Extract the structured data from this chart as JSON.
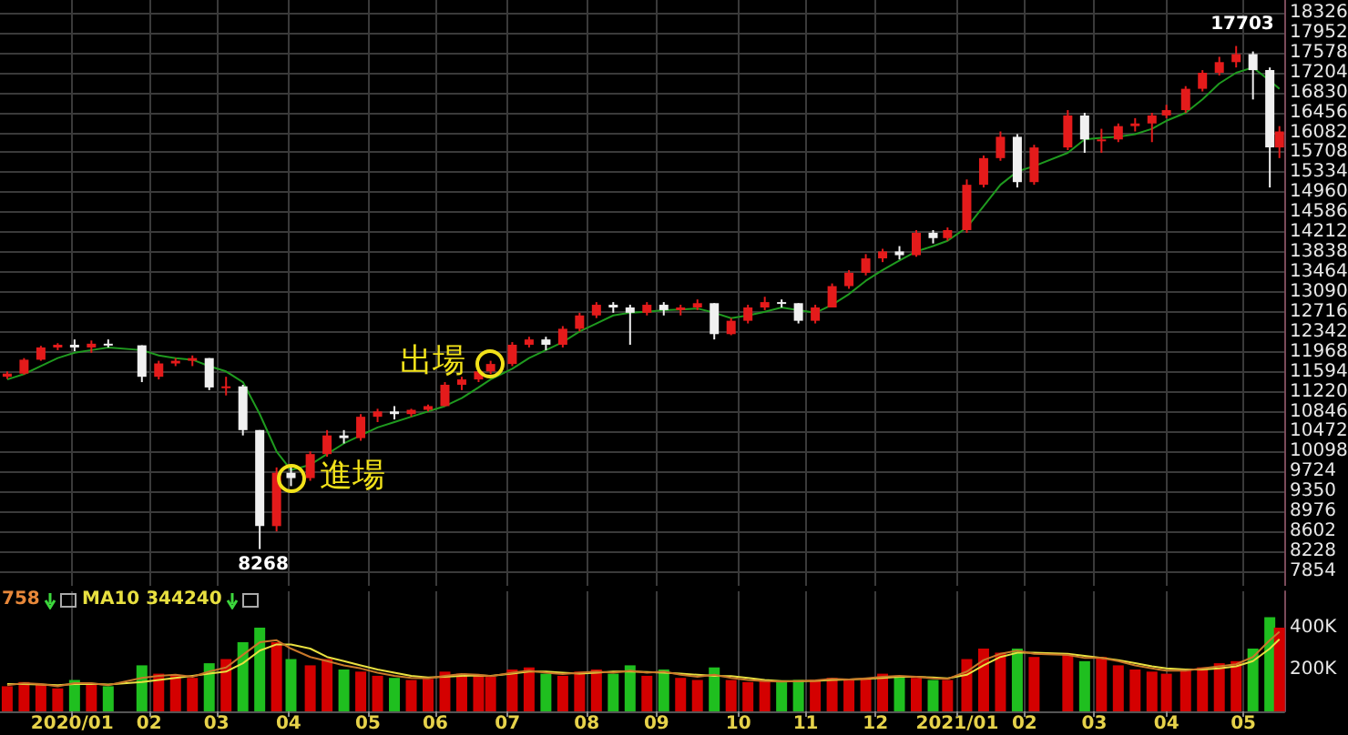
{
  "chart_data": [
    {
      "type": "candlestick",
      "x": [
        "2019-12-06",
        "2019-12-13",
        "2019-12-20",
        "2019-12-27",
        "2020-01-03",
        "2020-01-10",
        "2020-01-17",
        "2020-01-31",
        "2020-02-07",
        "2020-02-14",
        "2020-02-21",
        "2020-02-28",
        "2020-03-06",
        "2020-03-13",
        "2020-03-20",
        "2020-03-27",
        "2020-04-02",
        "2020-04-10",
        "2020-04-17",
        "2020-04-24",
        "2020-05-01",
        "2020-05-08",
        "2020-05-15",
        "2020-05-22",
        "2020-05-29",
        "2020-06-05",
        "2020-06-12",
        "2020-06-19",
        "2020-06-24",
        "2020-07-03",
        "2020-07-10",
        "2020-07-17",
        "2020-07-24",
        "2020-07-31",
        "2020-08-07",
        "2020-08-14",
        "2020-08-21",
        "2020-08-28",
        "2020-09-04",
        "2020-09-11",
        "2020-09-18",
        "2020-09-25",
        "2020-10-02",
        "2020-10-09",
        "2020-10-16",
        "2020-10-23",
        "2020-10-30",
        "2020-11-06",
        "2020-11-13",
        "2020-11-20",
        "2020-11-27",
        "2020-12-04",
        "2020-12-11",
        "2020-12-18",
        "2020-12-25",
        "2020-12-31",
        "2021-01-08",
        "2021-01-15",
        "2021-01-22",
        "2021-01-29",
        "2021-02-05",
        "2021-02-19",
        "2021-02-26",
        "2021-03-05",
        "2021-03-12",
        "2021-03-19",
        "2021-03-26",
        "2021-04-01",
        "2021-04-09",
        "2021-04-16",
        "2021-04-23",
        "2021-04-30",
        "2021-05-07",
        "2021-05-14",
        "2021-05-18"
      ],
      "ohlc": [
        [
          11500,
          11600,
          11460,
          11560
        ],
        [
          11560,
          11850,
          11540,
          11820
        ],
        [
          11820,
          12080,
          11800,
          12050
        ],
        [
          12050,
          12130,
          12000,
          12100
        ],
        [
          12100,
          12200,
          11980,
          12050
        ],
        [
          12050,
          12180,
          11950,
          12120
        ],
        [
          12120,
          12200,
          12050,
          12090
        ],
        [
          12090,
          12090,
          11400,
          11500
        ],
        [
          11500,
          11800,
          11450,
          11750
        ],
        [
          11750,
          11850,
          11700,
          11800
        ],
        [
          11800,
          11900,
          11700,
          11850
        ],
        [
          11850,
          11850,
          11250,
          11300
        ],
        [
          11300,
          11500,
          11150,
          11320
        ],
        [
          11320,
          11350,
          10400,
          10500
        ],
        [
          10500,
          10500,
          8268,
          8700
        ],
        [
          8700,
          9800,
          8600,
          9700
        ],
        [
          9700,
          9800,
          9450,
          9600
        ],
        [
          9600,
          10100,
          9550,
          10050
        ],
        [
          10050,
          10500,
          10000,
          10400
        ],
        [
          10400,
          10500,
          10250,
          10350
        ],
        [
          10350,
          10800,
          10300,
          10750
        ],
        [
          10750,
          10900,
          10650,
          10850
        ],
        [
          10850,
          10950,
          10700,
          10800
        ],
        [
          10800,
          10900,
          10750,
          10880
        ],
        [
          10880,
          10980,
          10850,
          10950
        ],
        [
          10950,
          11400,
          10950,
          11350
        ],
        [
          11350,
          11500,
          11250,
          11450
        ],
        [
          11450,
          11650,
          11400,
          11600
        ],
        [
          11600,
          11800,
          11550,
          11740
        ],
        [
          11740,
          12150,
          11700,
          12100
        ],
        [
          12100,
          12250,
          12050,
          12200
        ],
        [
          12200,
          12250,
          12000,
          12100
        ],
        [
          12100,
          12450,
          12050,
          12400
        ],
        [
          12400,
          12700,
          12350,
          12650
        ],
        [
          12650,
          12900,
          12600,
          12850
        ],
        [
          12850,
          12900,
          12700,
          12800
        ],
        [
          12800,
          12850,
          12100,
          12700
        ],
        [
          12700,
          12900,
          12650,
          12850
        ],
        [
          12850,
          12900,
          12650,
          12750
        ],
        [
          12750,
          12850,
          12650,
          12800
        ],
        [
          12800,
          12950,
          12750,
          12880
        ],
        [
          12880,
          12880,
          12200,
          12300
        ],
        [
          12300,
          12600,
          12280,
          12550
        ],
        [
          12550,
          12850,
          12500,
          12800
        ],
        [
          12800,
          13000,
          12750,
          12900
        ],
        [
          12900,
          12950,
          12800,
          12880
        ],
        [
          12880,
          12880,
          12500,
          12550
        ],
        [
          12550,
          12850,
          12500,
          12800
        ],
        [
          12800,
          13250,
          12800,
          13200
        ],
        [
          13200,
          13500,
          13150,
          13450
        ],
        [
          13450,
          13800,
          13400,
          13720
        ],
        [
          13720,
          13900,
          13650,
          13850
        ],
        [
          13850,
          13950,
          13700,
          13780
        ],
        [
          13780,
          14250,
          13750,
          14200
        ],
        [
          14200,
          14250,
          14000,
          14100
        ],
        [
          14100,
          14300,
          14050,
          14250
        ],
        [
          14250,
          15200,
          14200,
          15100
        ],
        [
          15100,
          15650,
          15050,
          15600
        ],
        [
          15600,
          16100,
          15550,
          16000
        ],
        [
          16000,
          16050,
          15050,
          15150
        ],
        [
          15150,
          15850,
          15100,
          15800
        ],
        [
          15800,
          16500,
          15750,
          16400
        ],
        [
          16400,
          16450,
          15700,
          15950
        ],
        [
          15950,
          16150,
          15700,
          15950
        ],
        [
          15950,
          16250,
          15900,
          16200
        ],
        [
          16200,
          16350,
          16100,
          16250
        ],
        [
          16250,
          16450,
          15900,
          16400
        ],
        [
          16400,
          16600,
          16350,
          16500
        ],
        [
          16500,
          16950,
          16450,
          16900
        ],
        [
          16900,
          17250,
          16850,
          17200
        ],
        [
          17200,
          17500,
          17150,
          17400
        ],
        [
          17400,
          17703,
          17300,
          17550
        ],
        [
          17550,
          17600,
          16700,
          17250
        ],
        [
          17250,
          17300,
          15050,
          15800
        ],
        [
          15800,
          16200,
          15600,
          16100
        ]
      ],
      "colors": [
        "#e41b1b",
        "#e41b1b",
        "#e41b1b",
        "#e41b1b",
        "#f0f0f0",
        "#e41b1b",
        "#f0f0f0",
        "#f0f0f0",
        "#e41b1b",
        "#e41b1b",
        "#e41b1b",
        "#f0f0f0",
        "#e41b1b",
        "#f0f0f0",
        "#f0f0f0",
        "#e41b1b",
        "#f0f0f0",
        "#e41b1b",
        "#e41b1b",
        "#f0f0f0",
        "#e41b1b",
        "#e41b1b",
        "#f0f0f0",
        "#e41b1b",
        "#e41b1b",
        "#e41b1b",
        "#e41b1b",
        "#e41b1b",
        "#e41b1b",
        "#e41b1b",
        "#e41b1b",
        "#f0f0f0",
        "#e41b1b",
        "#e41b1b",
        "#e41b1b",
        "#f0f0f0",
        "#f0f0f0",
        "#e41b1b",
        "#f0f0f0",
        "#e41b1b",
        "#e41b1b",
        "#f0f0f0",
        "#e41b1b",
        "#e41b1b",
        "#e41b1b",
        "#f0f0f0",
        "#f0f0f0",
        "#e41b1b",
        "#e41b1b",
        "#e41b1b",
        "#e41b1b",
        "#e41b1b",
        "#f0f0f0",
        "#e41b1b",
        "#f0f0f0",
        "#e41b1b",
        "#e41b1b",
        "#e41b1b",
        "#e41b1b",
        "#f0f0f0",
        "#e41b1b",
        "#e41b1b",
        "#f0f0f0",
        "#e41b1b",
        "#e41b1b",
        "#e41b1b",
        "#e41b1b",
        "#e41b1b",
        "#e41b1b",
        "#e41b1b",
        "#e41b1b",
        "#e41b1b",
        "#f0f0f0",
        "#f0f0f0",
        "#e41b1b"
      ],
      "series": [
        {
          "type": "line",
          "color": "#1f9a1f",
          "values": [
            11450,
            11550,
            11700,
            11850,
            11950,
            12000,
            12050,
            12000,
            11900,
            11850,
            11820,
            11700,
            11600,
            11400,
            10800,
            10100,
            9750,
            9850,
            10050,
            10250,
            10400,
            10550,
            10650,
            10750,
            10850,
            10950,
            11100,
            11300,
            11450,
            11650,
            11850,
            12000,
            12150,
            12350,
            12500,
            12650,
            12700,
            12720,
            12750,
            12760,
            12780,
            12700,
            12600,
            12650,
            12720,
            12800,
            12750,
            12700,
            12850,
            13050,
            13300,
            13500,
            13680,
            13850,
            13950,
            14050,
            14300,
            14700,
            15100,
            15350,
            15450,
            15700,
            15950,
            15980,
            16000,
            16050,
            16150,
            16300,
            16450,
            16700,
            17000,
            17200,
            17300,
            17050,
            16900
          ]
        }
      ],
      "xlim": [
        "2019-12-03",
        "2021-05-20"
      ],
      "xticks": [
        {
          "value": "2020-01-02",
          "label": null
        },
        {
          "value": "2020-02-03",
          "label": null
        },
        {
          "value": "2020-03-02",
          "label": null
        },
        {
          "value": "2020-04-01",
          "label": null
        },
        {
          "value": "2020-05-04",
          "label": null
        },
        {
          "value": "2020-06-01",
          "label": null
        },
        {
          "value": "2020-07-01",
          "label": null
        },
        {
          "value": "2020-08-03",
          "label": null
        },
        {
          "value": "2020-09-01",
          "label": null
        },
        {
          "value": "2020-10-05",
          "label": null
        },
        {
          "value": "2020-11-02",
          "label": null
        },
        {
          "value": "2020-12-01",
          "label": null
        },
        {
          "value": "2021-01-04",
          "label": null
        },
        {
          "value": "2021-02-01",
          "label": null
        },
        {
          "value": "2021-03-02",
          "label": null
        },
        {
          "value": "2021-04-01",
          "label": null
        },
        {
          "value": "2021-05-03",
          "label": null
        }
      ],
      "ylim": [
        7580,
        18565
      ],
      "yticks": [
        7854,
        8228,
        8602,
        8976,
        9350,
        9724,
        10098,
        10472,
        10846,
        11220,
        11594,
        11968,
        12342,
        12716,
        13090,
        13464,
        13838,
        14212,
        14586,
        14960,
        15334,
        15708,
        16082,
        16456,
        16830,
        17204,
        17578,
        17952,
        18326
      ],
      "grid": true,
      "tick_labels": "y",
      "marker": "none",
      "annotations": [
        {
          "text": "17703",
          "x": "2021-04-30",
          "y": 17703
        },
        {
          "text": "8268",
          "x": "2020-03-20",
          "y": 8268
        },
        {
          "text": "出場",
          "x": "2020-06-24",
          "y": 11740
        },
        {
          "text": "進場",
          "x": "2020-04-02",
          "y": 9600
        }
      ]
    },
    {
      "type": "bar",
      "x": [
        "2019-12-06",
        "2019-12-13",
        "2019-12-20",
        "2019-12-27",
        "2020-01-03",
        "2020-01-10",
        "2020-01-17",
        "2020-01-31",
        "2020-02-07",
        "2020-02-14",
        "2020-02-21",
        "2020-02-28",
        "2020-03-06",
        "2020-03-13",
        "2020-03-20",
        "2020-03-27",
        "2020-04-02",
        "2020-04-10",
        "2020-04-17",
        "2020-04-24",
        "2020-05-01",
        "2020-05-08",
        "2020-05-15",
        "2020-05-22",
        "2020-05-29",
        "2020-06-05",
        "2020-06-12",
        "2020-06-19",
        "2020-06-24",
        "2020-07-03",
        "2020-07-10",
        "2020-07-17",
        "2020-07-24",
        "2020-07-31",
        "2020-08-07",
        "2020-08-14",
        "2020-08-21",
        "2020-08-28",
        "2020-09-04",
        "2020-09-11",
        "2020-09-18",
        "2020-09-25",
        "2020-10-02",
        "2020-10-09",
        "2020-10-16",
        "2020-10-23",
        "2020-10-30",
        "2020-11-06",
        "2020-11-13",
        "2020-11-20",
        "2020-11-27",
        "2020-12-04",
        "2020-12-11",
        "2020-12-18",
        "2020-12-25",
        "2020-12-31",
        "2021-01-08",
        "2021-01-15",
        "2021-01-22",
        "2021-01-29",
        "2021-02-05",
        "2021-02-19",
        "2021-02-26",
        "2021-03-05",
        "2021-03-12",
        "2021-03-19",
        "2021-03-26",
        "2021-04-01",
        "2021-04-09",
        "2021-04-16",
        "2021-04-23",
        "2021-04-30",
        "2021-05-07",
        "2021-05-14",
        "2021-05-18"
      ],
      "series": [
        {
          "type": "bar",
          "colors": [
            "#d40000",
            "#d40000",
            "#d40000",
            "#d40000",
            "#1fbf1f",
            "#d40000",
            "#1fbf1f",
            "#1fbf1f",
            "#d40000",
            "#d40000",
            "#d40000",
            "#1fbf1f",
            "#d40000",
            "#1fbf1f",
            "#1fbf1f",
            "#d40000",
            "#1fbf1f",
            "#d40000",
            "#d40000",
            "#1fbf1f",
            "#d40000",
            "#d40000",
            "#1fbf1f",
            "#d40000",
            "#d40000",
            "#d40000",
            "#d40000",
            "#d40000",
            "#d40000",
            "#d40000",
            "#d40000",
            "#1fbf1f",
            "#d40000",
            "#d40000",
            "#d40000",
            "#1fbf1f",
            "#1fbf1f",
            "#d40000",
            "#1fbf1f",
            "#d40000",
            "#d40000",
            "#1fbf1f",
            "#d40000",
            "#d40000",
            "#d40000",
            "#1fbf1f",
            "#1fbf1f",
            "#d40000",
            "#d40000",
            "#d40000",
            "#d40000",
            "#d40000",
            "#1fbf1f",
            "#d40000",
            "#1fbf1f",
            "#d40000",
            "#d40000",
            "#d40000",
            "#d40000",
            "#1fbf1f",
            "#d40000",
            "#d40000",
            "#1fbf1f",
            "#d40000",
            "#d40000",
            "#d40000",
            "#d40000",
            "#d40000",
            "#d40000",
            "#d40000",
            "#d40000",
            "#d40000",
            "#1fbf1f",
            "#1fbf1f",
            "#d40000"
          ],
          "values": [
            120000,
            140000,
            130000,
            110000,
            150000,
            130000,
            120000,
            220000,
            180000,
            170000,
            160000,
            230000,
            250000,
            330000,
            400000,
            330000,
            250000,
            220000,
            250000,
            200000,
            190000,
            170000,
            160000,
            150000,
            155000,
            190000,
            180000,
            170000,
            165000,
            200000,
            210000,
            180000,
            170000,
            190000,
            200000,
            180000,
            220000,
            170000,
            200000,
            160000,
            150000,
            210000,
            150000,
            140000,
            145000,
            140000,
            150000,
            150000,
            160000,
            150000,
            160000,
            180000,
            170000,
            160000,
            150000,
            150000,
            250000,
            300000,
            280000,
            300000,
            260000,
            270000,
            240000,
            260000,
            220000,
            200000,
            190000,
            180000,
            200000,
            210000,
            230000,
            240000,
            300000,
            450000,
            400000
          ]
        },
        {
          "type": "line",
          "color": "#e8e040",
          "values": [
            130000,
            130000,
            128000,
            125000,
            130000,
            132000,
            128000,
            140000,
            150000,
            160000,
            170000,
            180000,
            190000,
            230000,
            290000,
            320000,
            320000,
            300000,
            260000,
            240000,
            220000,
            200000,
            185000,
            170000,
            162000,
            165000,
            170000,
            172000,
            170000,
            180000,
            190000,
            190000,
            185000,
            180000,
            185000,
            190000,
            190000,
            188000,
            185000,
            180000,
            175000,
            170000,
            168000,
            160000,
            150000,
            145000,
            145000,
            146000,
            150000,
            152000,
            155000,
            160000,
            165000,
            165000,
            162000,
            158000,
            175000,
            220000,
            260000,
            280000,
            280000,
            275000,
            265000,
            255000,
            245000,
            230000,
            215000,
            205000,
            200000,
            200000,
            205000,
            215000,
            240000,
            300000,
            344240
          ]
        },
        {
          "type": "line",
          "color": "#c8782a",
          "values": [
            125000,
            135000,
            130000,
            120000,
            135000,
            135000,
            125000,
            160000,
            170000,
            175000,
            165000,
            190000,
            210000,
            270000,
            330000,
            340000,
            300000,
            260000,
            240000,
            220000,
            205000,
            185000,
            170000,
            160000,
            158000,
            170000,
            178000,
            175000,
            168000,
            185000,
            195000,
            185000,
            178000,
            185000,
            190000,
            185000,
            195000,
            185000,
            190000,
            175000,
            165000,
            175000,
            160000,
            150000,
            145000,
            142000,
            145000,
            148000,
            155000,
            152000,
            158000,
            165000,
            170000,
            165000,
            158000,
            155000,
            190000,
            245000,
            275000,
            290000,
            275000,
            270000,
            255000,
            255000,
            240000,
            220000,
            205000,
            195000,
            195000,
            205000,
            215000,
            225000,
            260000,
            340000,
            380000
          ]
        }
      ],
      "xlim": [
        "2019-12-03",
        "2021-05-20"
      ],
      "xticks": [
        {
          "value": "2020-01-02",
          "label": "2020/01"
        },
        {
          "value": "2020-02-03",
          "label": "02"
        },
        {
          "value": "2020-03-02",
          "label": "03"
        },
        {
          "value": "2020-04-01",
          "label": "04"
        },
        {
          "value": "2020-05-04",
          "label": "05"
        },
        {
          "value": "2020-06-01",
          "label": "06"
        },
        {
          "value": "2020-07-01",
          "label": "07"
        },
        {
          "value": "2020-08-03",
          "label": "08"
        },
        {
          "value": "2020-09-01",
          "label": "09"
        },
        {
          "value": "2020-10-05",
          "label": "10"
        },
        {
          "value": "2020-11-02",
          "label": "11"
        },
        {
          "value": "2020-12-01",
          "label": "12"
        },
        {
          "value": "2021-01-04",
          "label": "2021/01"
        },
        {
          "value": "2021-02-01",
          "label": "02"
        },
        {
          "value": "2021-03-02",
          "label": "03"
        },
        {
          "value": "2021-04-01",
          "label": "04"
        },
        {
          "value": "2021-05-03",
          "label": "05"
        }
      ],
      "ylim": [
        0,
        574000
      ],
      "yticks": [
        {
          "value": 200000,
          "label": "200K"
        },
        {
          "value": 400000,
          "label": "400K"
        }
      ],
      "grid": "x",
      "marker": "none",
      "annotations": [
        "758",
        "MA10 344240"
      ]
    }
  ]
}
